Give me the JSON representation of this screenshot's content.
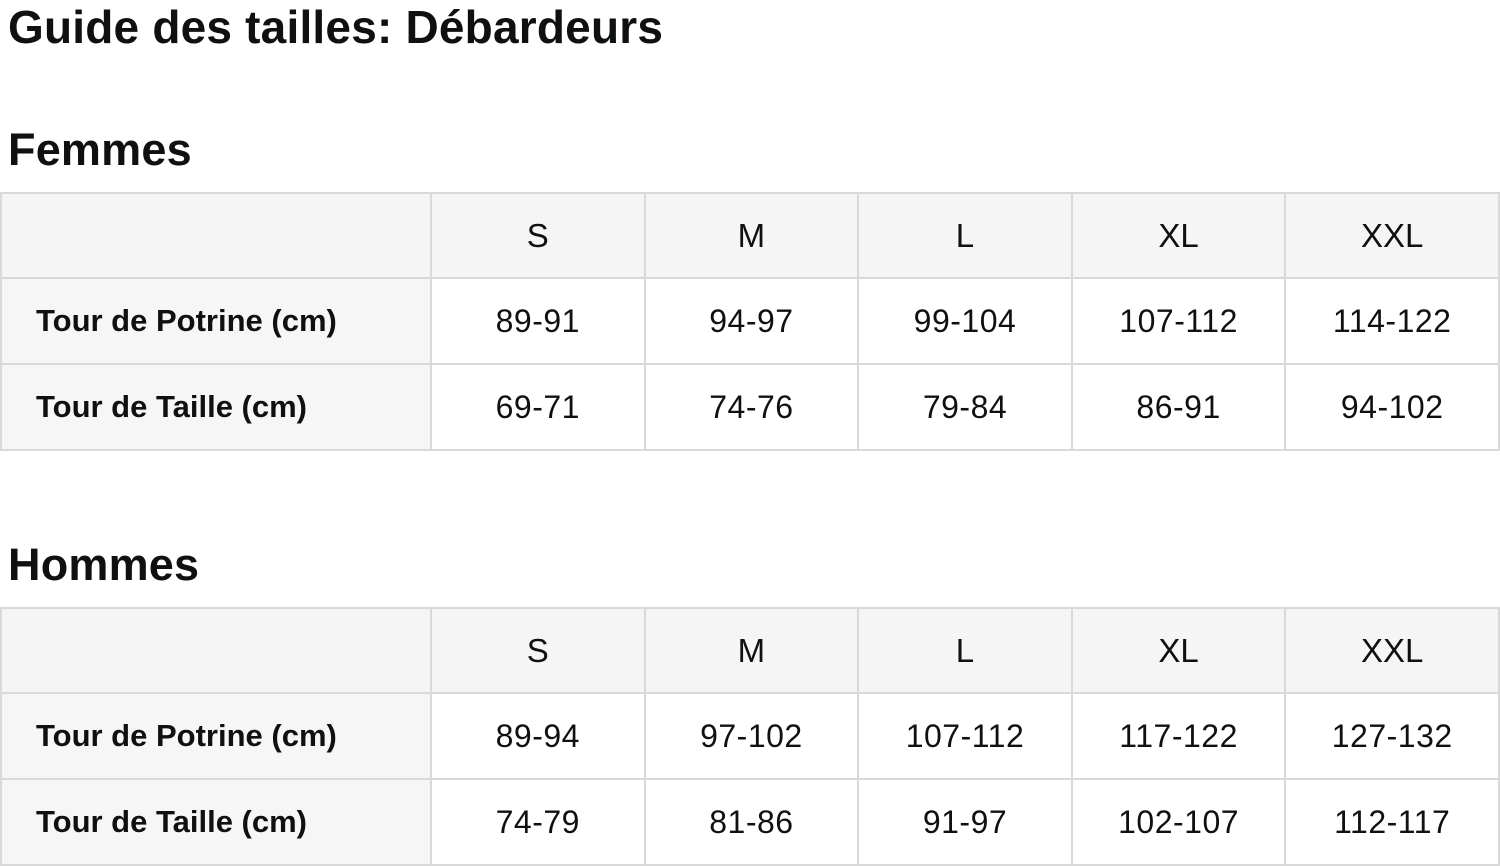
{
  "page": {
    "title": "Guide des tailles: Débardeurs"
  },
  "colors": {
    "page_background": "#ffffff",
    "text": "#0f1111",
    "table_border": "#d9d9d9",
    "header_cell_background": "#f5f5f6",
    "label_cell_background": "#f6f6f7",
    "data_cell_background": "#ffffff"
  },
  "tables": [
    {
      "section_title": "Femmes",
      "columns": [
        "",
        "S",
        "M",
        "L",
        "XL",
        "XXL"
      ],
      "rows": [
        {
          "label": "Tour de Potrine (cm)",
          "values": [
            "89-91",
            "94-97",
            "99-104",
            "107-112",
            "114-122"
          ]
        },
        {
          "label": "Tour de Taille (cm)",
          "values": [
            "69-71",
            "74-76",
            "79-84",
            "86-91",
            "94-102"
          ]
        }
      ]
    },
    {
      "section_title": "Hommes",
      "columns": [
        "",
        "S",
        "M",
        "L",
        "XL",
        "XXL"
      ],
      "rows": [
        {
          "label": "Tour de Potrine (cm)",
          "values": [
            "89-94",
            "97-102",
            "107-112",
            "117-122",
            "127-132"
          ]
        },
        {
          "label": "Tour de Taille (cm)",
          "values": [
            "74-79",
            "81-86",
            "91-97",
            "102-107",
            "112-117"
          ]
        }
      ]
    }
  ]
}
